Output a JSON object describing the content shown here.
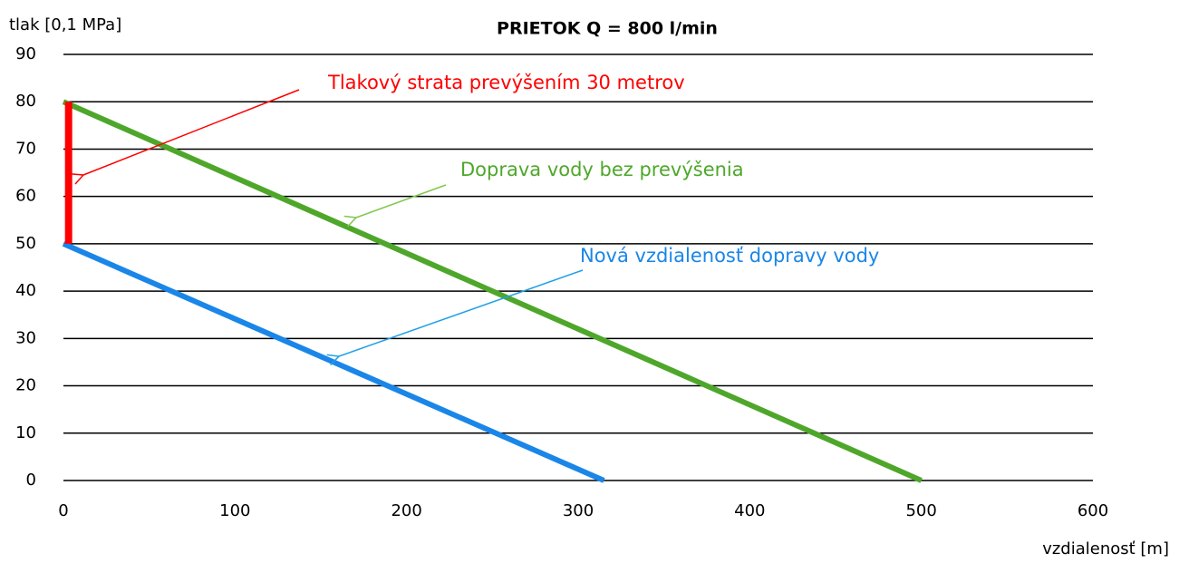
{
  "chart_data": {
    "type": "line",
    "title": "PRIETOK Q = 800 l/min",
    "y_label": "tlak [0,1 MPa]",
    "x_label": "vzdialenosť [m]",
    "xlim": [
      0,
      600
    ],
    "xticks": [
      0,
      100,
      200,
      300,
      400,
      500,
      600
    ],
    "ylim": [
      0,
      90
    ],
    "yticks": [
      0,
      10,
      20,
      30,
      40,
      50,
      60,
      70,
      80,
      90
    ],
    "grid": true,
    "series": [
      {
        "color": "#4ea72a",
        "x": [
          0,
          500
        ],
        "values": [
          80,
          0
        ]
      },
      {
        "color": "#1a86e8",
        "x": [
          0,
          315
        ],
        "values": [
          50,
          0
        ]
      },
      {
        "color": "#ff0000",
        "x": [
          3,
          3
        ],
        "values": [
          50,
          80
        ]
      }
    ],
    "annotations": [
      {
        "text": "Tlakový strata prevýšením 30 metrov",
        "color": "#ff0000"
      },
      {
        "text": "Doprava vody bez prevýšenia",
        "color": "#4ea72a"
      },
      {
        "text": "Nová vzdialenosť dopravy vody",
        "color": "#1a86e8"
      }
    ]
  }
}
